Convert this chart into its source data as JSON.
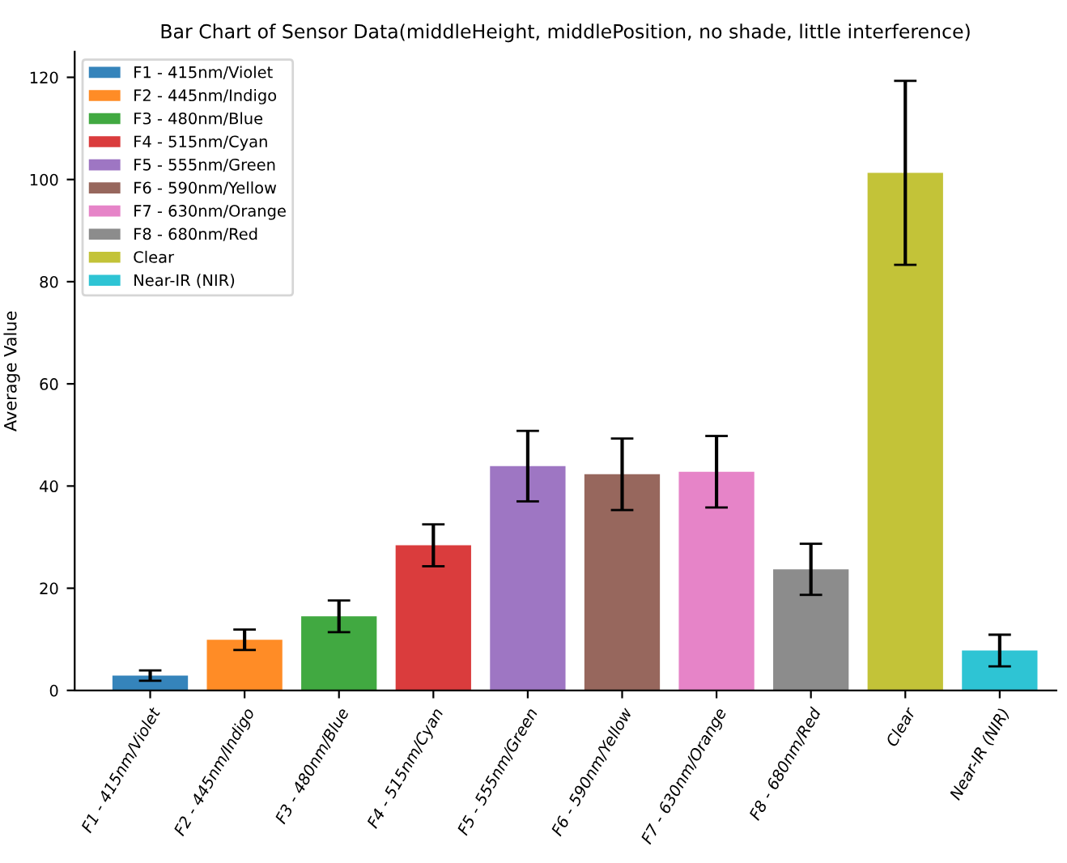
{
  "chart_data": {
    "type": "bar",
    "title": "Bar Chart of Sensor Data(middleHeight, middlePosition, no shade, little interference)",
    "ylabel": "Average Value",
    "categories": [
      "F1 - 415nm/Violet",
      "F2 - 445nm/Indigo",
      "F3 - 480nm/Blue",
      "F4 - 515nm/Cyan",
      "F5 - 555nm/Green",
      "F6 - 590nm/Yellow",
      "F7 - 630nm/Orange",
      "F8 - 680nm/Red",
      "Clear",
      "Near-IR (NIR)"
    ],
    "series": [
      {
        "name": "F1 - 415nm/Violet",
        "color": "#1f77b4",
        "values": [
          2.9,
          null,
          null,
          null,
          null,
          null,
          null,
          null,
          null,
          null
        ],
        "errors": [
          1.0,
          null,
          null,
          null,
          null,
          null,
          null,
          null,
          null,
          null
        ]
      },
      {
        "name": "F2 - 445nm/Indigo",
        "color": "#ff7f0e",
        "values": [
          null,
          9.9,
          null,
          null,
          null,
          null,
          null,
          null,
          null,
          null
        ],
        "errors": [
          null,
          2.0,
          null,
          null,
          null,
          null,
          null,
          null,
          null,
          null
        ]
      },
      {
        "name": "F3 - 480nm/Blue",
        "color": "#2ca02c",
        "values": [
          null,
          null,
          14.5,
          null,
          null,
          null,
          null,
          null,
          null,
          null
        ],
        "errors": [
          null,
          null,
          3.1,
          null,
          null,
          null,
          null,
          null,
          null,
          null
        ]
      },
      {
        "name": "F4 - 515nm/Cyan",
        "color": "#d62728",
        "values": [
          null,
          null,
          null,
          28.4,
          null,
          null,
          null,
          null,
          null,
          null
        ],
        "errors": [
          null,
          null,
          null,
          4.1,
          null,
          null,
          null,
          null,
          null,
          null
        ]
      },
      {
        "name": "F5 - 555nm/Green",
        "color": "#9467bd",
        "values": [
          null,
          null,
          null,
          null,
          43.9,
          null,
          null,
          null,
          null,
          null
        ],
        "errors": [
          null,
          null,
          null,
          null,
          6.9,
          null,
          null,
          null,
          null,
          null
        ]
      },
      {
        "name": "F6 - 590nm/Yellow",
        "color": "#8c564b",
        "values": [
          null,
          null,
          null,
          null,
          null,
          42.3,
          null,
          null,
          null,
          null
        ],
        "errors": [
          null,
          null,
          null,
          null,
          null,
          7.0,
          null,
          null,
          null,
          null
        ]
      },
      {
        "name": "F7 - 630nm/Orange",
        "color": "#e377c2",
        "values": [
          null,
          null,
          null,
          null,
          null,
          null,
          42.8,
          null,
          null,
          null
        ],
        "errors": [
          null,
          null,
          null,
          null,
          null,
          null,
          7.0,
          null,
          null,
          null
        ]
      },
      {
        "name": "F8 - 680nm/Red",
        "color": "#7f7f7f",
        "values": [
          null,
          null,
          null,
          null,
          null,
          null,
          null,
          23.7,
          null,
          null
        ],
        "errors": [
          null,
          null,
          null,
          null,
          null,
          null,
          null,
          5.0,
          null,
          null
        ]
      },
      {
        "name": "Clear",
        "color": "#bcbd22",
        "values": [
          null,
          null,
          null,
          null,
          null,
          null,
          null,
          null,
          101.3,
          null
        ],
        "errors": [
          null,
          null,
          null,
          null,
          null,
          null,
          null,
          null,
          18.0,
          null
        ]
      },
      {
        "name": "Near-IR (NIR)",
        "color": "#17becf",
        "values": [
          null,
          null,
          null,
          null,
          null,
          null,
          null,
          null,
          null,
          7.8
        ],
        "errors": [
          null,
          null,
          null,
          null,
          null,
          null,
          null,
          null,
          null,
          3.1
        ]
      }
    ],
    "ylim": [
      0,
      125
    ],
    "yticks": [
      0,
      20,
      40,
      60,
      80,
      100,
      120
    ],
    "grid": false,
    "legend": "top left"
  }
}
